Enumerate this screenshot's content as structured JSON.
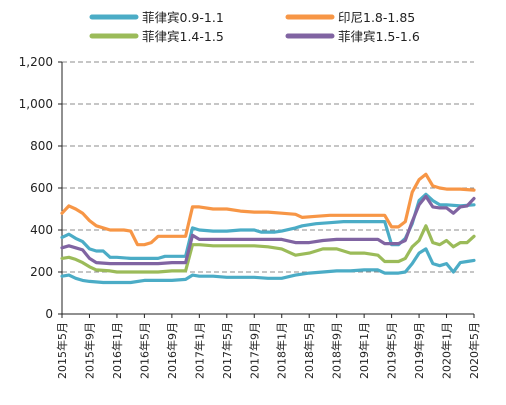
{
  "chart_data": {
    "type": "line",
    "title": "",
    "xlabel": "",
    "ylabel": "",
    "ylim": [
      0,
      1200
    ],
    "yticks": [
      0,
      200,
      400,
      600,
      800,
      1000,
      1200
    ],
    "ytick_labels": [
      "0",
      "200",
      "400",
      "600",
      "800",
      "1,000",
      "1,200"
    ],
    "xlim": [
      "2015-05",
      "2020-05"
    ],
    "xticks": [
      "2015-05",
      "2015-09",
      "2016-01",
      "2016-05",
      "2016-09",
      "2017-01",
      "2017-05",
      "2017-09",
      "2018-01",
      "2018-05",
      "2018-09",
      "2019-01",
      "2019-05",
      "2019-09",
      "2020-01",
      "2020-05"
    ],
    "xtick_labels": [
      "2015年5月",
      "2015年9月",
      "2016年1月",
      "2016年5月",
      "2016年9月",
      "2017年1月",
      "2017年5月",
      "2017年9月",
      "2018年1月",
      "2018年5月",
      "2018年9月",
      "2019年1月",
      "2019年5月",
      "2019年9月",
      "2020年1月",
      "2020年5月"
    ],
    "grid": "horizontal dashed",
    "legend_position": "top",
    "series": [
      {
        "name": "菲律宾0.9-1.1",
        "color": "#4bacc6",
        "points": [
          [
            "2015-05",
            365
          ],
          [
            "2015-06",
            380
          ],
          [
            "2015-07",
            360
          ],
          [
            "2015-08",
            345
          ],
          [
            "2015-09",
            310
          ],
          [
            "2015-10",
            300
          ],
          [
            "2015-11",
            300
          ],
          [
            "2015-12",
            270
          ],
          [
            "2016-01",
            270
          ],
          [
            "2016-03",
            265
          ],
          [
            "2016-05",
            265
          ],
          [
            "2016-07",
            265
          ],
          [
            "2016-08",
            275
          ],
          [
            "2016-10",
            275
          ],
          [
            "2016-11",
            275
          ],
          [
            "2016-12",
            410
          ],
          [
            "2017-01",
            400
          ],
          [
            "2017-03",
            395
          ],
          [
            "2017-05",
            395
          ],
          [
            "2017-07",
            400
          ],
          [
            "2017-09",
            400
          ],
          [
            "2017-10",
            390
          ],
          [
            "2017-12",
            390
          ],
          [
            "2018-01",
            395
          ],
          [
            "2018-03",
            410
          ],
          [
            "2018-04",
            420
          ],
          [
            "2018-06",
            430
          ],
          [
            "2018-08",
            435
          ],
          [
            "2018-10",
            440
          ],
          [
            "2019-01",
            440
          ],
          [
            "2019-04",
            440
          ],
          [
            "2019-05",
            330
          ],
          [
            "2019-06",
            330
          ],
          [
            "2019-07",
            360
          ],
          [
            "2019-08",
            430
          ],
          [
            "2019-09",
            540
          ],
          [
            "2019-10",
            570
          ],
          [
            "2019-11",
            540
          ],
          [
            "2019-12",
            520
          ],
          [
            "2020-01",
            520
          ],
          [
            "2020-03",
            515
          ],
          [
            "2020-05",
            520
          ]
        ]
      },
      {
        "name": "印尼1.8-1.85",
        "color": "#f79646",
        "points": [
          [
            "2015-05",
            480
          ],
          [
            "2015-06",
            515
          ],
          [
            "2015-07",
            500
          ],
          [
            "2015-08",
            480
          ],
          [
            "2015-09",
            445
          ],
          [
            "2015-10",
            420
          ],
          [
            "2015-12",
            400
          ],
          [
            "2016-01",
            400
          ],
          [
            "2016-02",
            400
          ],
          [
            "2016-03",
            395
          ],
          [
            "2016-04",
            330
          ],
          [
            "2016-05",
            330
          ],
          [
            "2016-06",
            340
          ],
          [
            "2016-07",
            370
          ],
          [
            "2016-08",
            370
          ],
          [
            "2016-10",
            370
          ],
          [
            "2016-11",
            370
          ],
          [
            "2016-12",
            510
          ],
          [
            "2017-01",
            510
          ],
          [
            "2017-03",
            500
          ],
          [
            "2017-05",
            500
          ],
          [
            "2017-07",
            490
          ],
          [
            "2017-09",
            485
          ],
          [
            "2017-11",
            485
          ],
          [
            "2018-01",
            480
          ],
          [
            "2018-03",
            475
          ],
          [
            "2018-04",
            460
          ],
          [
            "2018-06",
            465
          ],
          [
            "2018-08",
            470
          ],
          [
            "2018-10",
            470
          ],
          [
            "2019-01",
            470
          ],
          [
            "2019-03",
            470
          ],
          [
            "2019-04",
            470
          ],
          [
            "2019-05",
            415
          ],
          [
            "2019-06",
            415
          ],
          [
            "2019-07",
            440
          ],
          [
            "2019-08",
            580
          ],
          [
            "2019-09",
            640
          ],
          [
            "2019-10",
            665
          ],
          [
            "2019-11",
            610
          ],
          [
            "2019-12",
            600
          ],
          [
            "2020-01",
            595
          ],
          [
            "2020-03",
            595
          ],
          [
            "2020-05",
            590
          ]
        ]
      },
      {
        "name": "菲律宾1.4-1.5",
        "color": "#9bbb59",
        "points": [
          [
            "2015-05",
            265
          ],
          [
            "2015-06",
            270
          ],
          [
            "2015-07",
            260
          ],
          [
            "2015-08",
            245
          ],
          [
            "2015-09",
            225
          ],
          [
            "2015-10",
            210
          ],
          [
            "2015-12",
            205
          ],
          [
            "2016-01",
            200
          ],
          [
            "2016-03",
            200
          ],
          [
            "2016-05",
            200
          ],
          [
            "2016-07",
            200
          ],
          [
            "2016-09",
            205
          ],
          [
            "2016-11",
            205
          ],
          [
            "2016-12",
            330
          ],
          [
            "2017-01",
            330
          ],
          [
            "2017-03",
            325
          ],
          [
            "2017-05",
            325
          ],
          [
            "2017-07",
            325
          ],
          [
            "2017-09",
            325
          ],
          [
            "2017-11",
            320
          ],
          [
            "2018-01",
            310
          ],
          [
            "2018-03",
            280
          ],
          [
            "2018-05",
            290
          ],
          [
            "2018-07",
            310
          ],
          [
            "2018-09",
            310
          ],
          [
            "2018-11",
            290
          ],
          [
            "2019-01",
            290
          ],
          [
            "2019-03",
            280
          ],
          [
            "2019-04",
            250
          ],
          [
            "2019-06",
            250
          ],
          [
            "2019-07",
            265
          ],
          [
            "2019-08",
            320
          ],
          [
            "2019-09",
            350
          ],
          [
            "2019-10",
            420
          ],
          [
            "2019-11",
            340
          ],
          [
            "2019-12",
            330
          ],
          [
            "2020-01",
            350
          ],
          [
            "2020-02",
            320
          ],
          [
            "2020-03",
            340
          ],
          [
            "2020-04",
            340
          ],
          [
            "2020-05",
            370
          ]
        ]
      },
      {
        "name": "菲律宾1.5-1.6",
        "color": "#8064a2",
        "points": [
          [
            "2015-05",
            315
          ],
          [
            "2015-06",
            325
          ],
          [
            "2015-07",
            315
          ],
          [
            "2015-08",
            305
          ],
          [
            "2015-09",
            265
          ],
          [
            "2015-10",
            245
          ],
          [
            "2015-12",
            240
          ],
          [
            "2016-01",
            240
          ],
          [
            "2016-03",
            240
          ],
          [
            "2016-05",
            240
          ],
          [
            "2016-07",
            240
          ],
          [
            "2016-09",
            245
          ],
          [
            "2016-11",
            245
          ],
          [
            "2016-12",
            375
          ],
          [
            "2017-01",
            355
          ],
          [
            "2017-03",
            355
          ],
          [
            "2017-05",
            355
          ],
          [
            "2017-07",
            355
          ],
          [
            "2017-09",
            355
          ],
          [
            "2017-11",
            355
          ],
          [
            "2018-01",
            355
          ],
          [
            "2018-03",
            340
          ],
          [
            "2018-05",
            340
          ],
          [
            "2018-07",
            350
          ],
          [
            "2018-09",
            355
          ],
          [
            "2018-11",
            355
          ],
          [
            "2019-01",
            355
          ],
          [
            "2019-03",
            355
          ],
          [
            "2019-04",
            335
          ],
          [
            "2019-06",
            335
          ],
          [
            "2019-07",
            350
          ],
          [
            "2019-08",
            440
          ],
          [
            "2019-09",
            520
          ],
          [
            "2019-10",
            560
          ],
          [
            "2019-11",
            510
          ],
          [
            "2019-12",
            505
          ],
          [
            "2020-01",
            505
          ],
          [
            "2020-02",
            480
          ],
          [
            "2020-03",
            510
          ],
          [
            "2020-04",
            515
          ],
          [
            "2020-05",
            550
          ]
        ]
      },
      {
        "name": "菲律宾0.9-1.1",
        "legend": false,
        "color": "#4bacc6",
        "points": [
          [
            "2015-05",
            180
          ],
          [
            "2015-06",
            185
          ],
          [
            "2015-07",
            170
          ],
          [
            "2015-08",
            160
          ],
          [
            "2015-09",
            155
          ],
          [
            "2015-11",
            150
          ],
          [
            "2016-01",
            150
          ],
          [
            "2016-03",
            150
          ],
          [
            "2016-05",
            160
          ],
          [
            "2016-07",
            160
          ],
          [
            "2016-09",
            160
          ],
          [
            "2016-11",
            165
          ],
          [
            "2016-12",
            185
          ],
          [
            "2017-01",
            180
          ],
          [
            "2017-03",
            180
          ],
          [
            "2017-05",
            175
          ],
          [
            "2017-07",
            175
          ],
          [
            "2017-09",
            175
          ],
          [
            "2017-11",
            170
          ],
          [
            "2018-01",
            170
          ],
          [
            "2018-03",
            185
          ],
          [
            "2018-05",
            195
          ],
          [
            "2018-07",
            200
          ],
          [
            "2018-09",
            205
          ],
          [
            "2018-11",
            205
          ],
          [
            "2019-01",
            210
          ],
          [
            "2019-03",
            210
          ],
          [
            "2019-04",
            195
          ],
          [
            "2019-06",
            195
          ],
          [
            "2019-07",
            200
          ],
          [
            "2019-08",
            240
          ],
          [
            "2019-09",
            290
          ],
          [
            "2019-10",
            310
          ],
          [
            "2019-11",
            240
          ],
          [
            "2019-12",
            230
          ],
          [
            "2020-01",
            240
          ],
          [
            "2020-02",
            200
          ],
          [
            "2020-03",
            245
          ],
          [
            "2020-04",
            250
          ],
          [
            "2020-05",
            255
          ]
        ]
      }
    ]
  }
}
